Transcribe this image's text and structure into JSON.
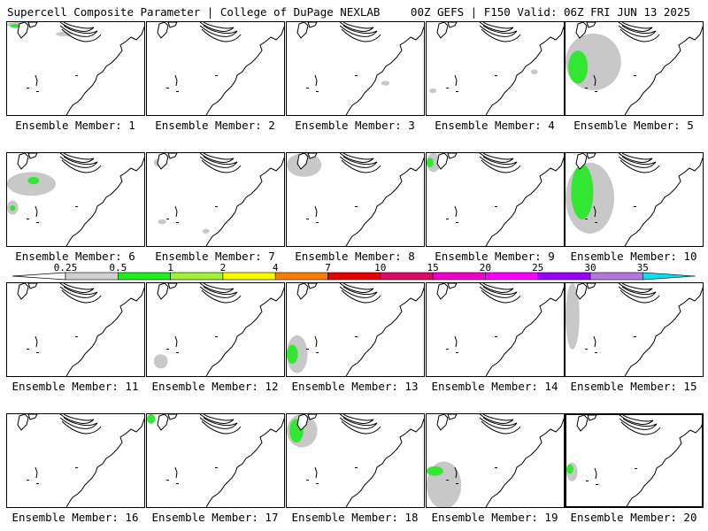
{
  "header": {
    "left": "Supercell Composite Parameter | College of DuPage NEXLAB",
    "right": "00Z GEFS | F150 Valid: 06Z FRI JUN 13 2025"
  },
  "members": [
    {
      "label": "Ensemble Member: 1",
      "scp": "marginal",
      "blobs": [
        [
          "g",
          0,
          0,
          0.18,
          0.05
        ],
        [
          "l",
          0.02,
          0.02,
          0.08,
          0.04
        ],
        [
          "g",
          0.35,
          0.1,
          0.12,
          0.05
        ]
      ]
    },
    {
      "label": "Ensemble Member: 2",
      "scp": "none",
      "blobs": []
    },
    {
      "label": "Ensemble Member: 3",
      "scp": "trace",
      "blobs": [
        [
          "g",
          0.68,
          0.62,
          0.06,
          0.05
        ]
      ]
    },
    {
      "label": "Ensemble Member: 4",
      "scp": "trace",
      "blobs": [
        [
          "g",
          0.02,
          0.7,
          0.05,
          0.05
        ],
        [
          "g",
          0.75,
          0.5,
          0.05,
          0.05
        ]
      ]
    },
    {
      "label": "Ensemble Member: 5",
      "scp": "moderate",
      "blobs": [
        [
          "g",
          0,
          0.12,
          0.4,
          0.6
        ],
        [
          "l",
          0.02,
          0.3,
          0.14,
          0.35
        ]
      ]
    },
    {
      "label": "Ensemble Member: 6",
      "scp": "marginal",
      "blobs": [
        [
          "g",
          0.0,
          0.2,
          0.35,
          0.25
        ],
        [
          "l",
          0.15,
          0.25,
          0.08,
          0.08
        ],
        [
          "g",
          0.0,
          0.5,
          0.08,
          0.15
        ],
        [
          "l",
          0.02,
          0.55,
          0.04,
          0.06
        ]
      ]
    },
    {
      "label": "Ensemble Member: 7",
      "scp": "trace",
      "blobs": [
        [
          "g",
          0.05,
          0.05,
          0.1,
          0.1
        ],
        [
          "g",
          0.08,
          0.7,
          0.06,
          0.05
        ],
        [
          "g",
          0.4,
          0.8,
          0.05,
          0.05
        ]
      ]
    },
    {
      "label": "Ensemble Member: 8",
      "scp": "marginal",
      "blobs": [
        [
          "g",
          0.0,
          0.0,
          0.25,
          0.25
        ],
        [
          "l",
          0.08,
          0.05,
          0.06,
          0.1
        ]
      ]
    },
    {
      "label": "Ensemble Member: 9",
      "scp": "marginal",
      "blobs": [
        [
          "g",
          0.0,
          0.0,
          0.1,
          0.2
        ],
        [
          "l",
          0.0,
          0.05,
          0.05,
          0.1
        ]
      ]
    },
    {
      "label": "Ensemble Member: 10",
      "scp": "moderate",
      "blobs": [
        [
          "g",
          0,
          0.1,
          0.35,
          0.75
        ],
        [
          "l",
          0.04,
          0.12,
          0.16,
          0.58
        ]
      ]
    },
    {
      "label": "Ensemble Member: 11",
      "scp": "none",
      "blobs": []
    },
    {
      "label": "Ensemble Member: 12",
      "scp": "trace",
      "blobs": [
        [
          "g",
          0.05,
          0.75,
          0.1,
          0.15
        ]
      ]
    },
    {
      "label": "Ensemble Member: 13",
      "scp": "marginal",
      "blobs": [
        [
          "g",
          0.0,
          0.55,
          0.15,
          0.4
        ],
        [
          "l",
          0.0,
          0.65,
          0.08,
          0.2
        ]
      ]
    },
    {
      "label": "Ensemble Member: 14",
      "scp": "none",
      "blobs": []
    },
    {
      "label": "Ensemble Member: 15",
      "scp": "trace",
      "blobs": [
        [
          "g",
          0.0,
          0.0,
          0.1,
          0.7
        ]
      ]
    },
    {
      "label": "Ensemble Member: 16",
      "scp": "none",
      "blobs": []
    },
    {
      "label": "Ensemble Member: 17",
      "scp": "trace",
      "blobs": [
        [
          "l",
          0.0,
          0.0,
          0.06,
          0.1
        ]
      ]
    },
    {
      "label": "Ensemble Member: 18",
      "scp": "marginal",
      "blobs": [
        [
          "g",
          0.0,
          0.0,
          0.22,
          0.35
        ],
        [
          "l",
          0.02,
          0.05,
          0.1,
          0.25
        ]
      ]
    },
    {
      "label": "Ensemble Member: 19",
      "scp": "marginal",
      "blobs": [
        [
          "g",
          0.0,
          0.5,
          0.25,
          0.5
        ],
        [
          "l",
          0.0,
          0.55,
          0.12,
          0.1
        ]
      ]
    },
    {
      "label": "Ensemble Member: 20",
      "scp": "trace",
      "blobs": [
        [
          "g",
          0.0,
          0.5,
          0.08,
          0.2
        ],
        [
          "l",
          0.0,
          0.52,
          0.05,
          0.1
        ]
      ]
    }
  ],
  "selected_member": 20,
  "colorbar": {
    "labels": [
      "0.25",
      "0.5",
      "1",
      "2",
      "4",
      "7",
      "10",
      "15",
      "20",
      "25",
      "30",
      "35"
    ],
    "colors": [
      "#d0d0d0",
      "#1ef01e",
      "#a0f03c",
      "#fafa00",
      "#fa7d00",
      "#e60000",
      "#dc0a64",
      "#f000c8",
      "#fa00fa",
      "#9b00fa",
      "#b478dc",
      "#00e6f0"
    ],
    "shade_colors": {
      "g": "#c8c8c8",
      "l": "#32e632"
    }
  }
}
